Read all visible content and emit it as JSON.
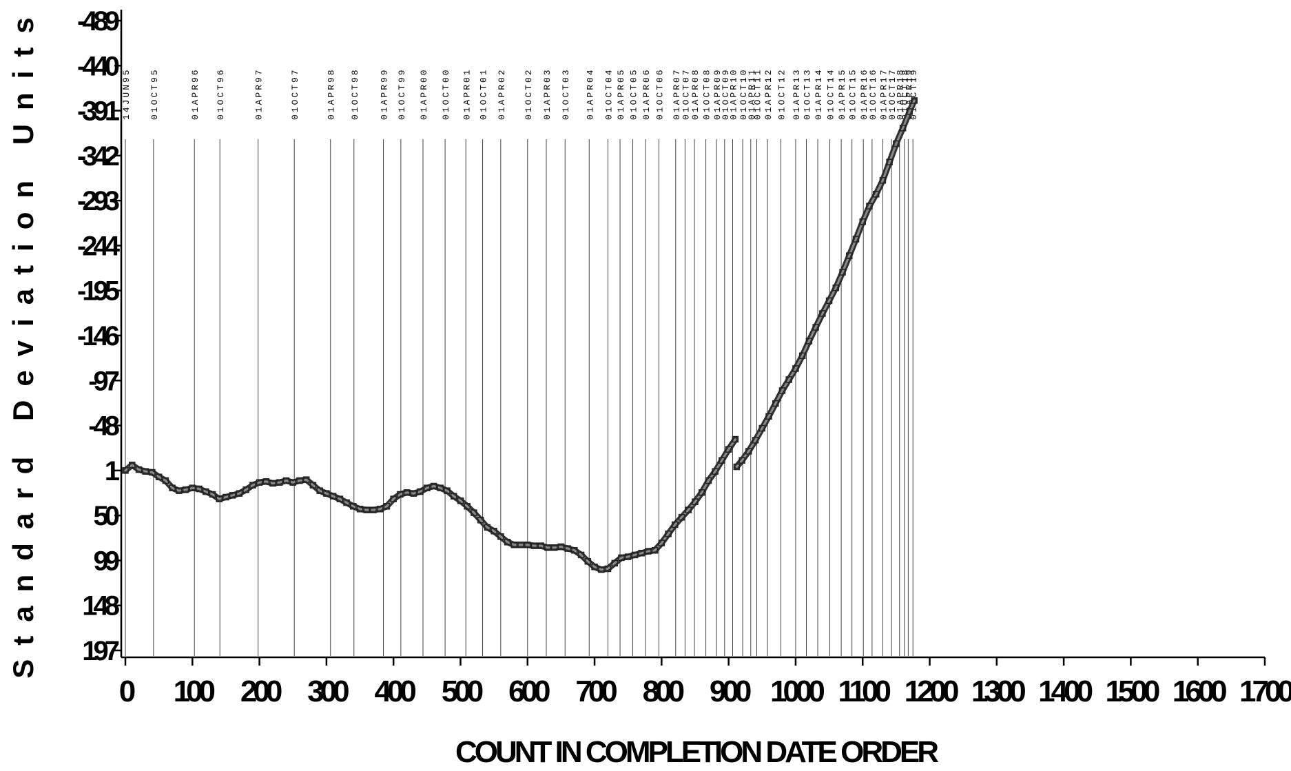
{
  "chart_data": {
    "type": "line",
    "title": "",
    "xlabel": "COUNT IN COMPLETION DATE ORDER",
    "ylabel": "Standard Deviation Units",
    "xlim": [
      0,
      1700
    ],
    "ylim": [
      197,
      -489
    ],
    "y_reversed": true,
    "x_ticks": [
      "0",
      "100",
      "200",
      "300",
      "400",
      "500",
      "600",
      "700",
      "800",
      "900",
      "1000",
      "1100",
      "1200",
      "1300",
      "1400",
      "1500",
      "1600",
      "1700"
    ],
    "y_ticks": [
      "-489",
      "-440",
      "-391",
      "-342",
      "-293",
      "-244",
      "-195",
      "-146",
      "-97",
      "-48",
      "1",
      "50",
      "99",
      "148",
      "197"
    ],
    "grid": false,
    "reference_lines": [
      {
        "x": 0,
        "label": "14JUN95"
      },
      {
        "x": 42,
        "label": "01OCT95"
      },
      {
        "x": 103,
        "label": "01APR96"
      },
      {
        "x": 141,
        "label": "01OCT96"
      },
      {
        "x": 198,
        "label": "01APR97"
      },
      {
        "x": 252,
        "label": "01OCT97"
      },
      {
        "x": 306,
        "label": "01APR98"
      },
      {
        "x": 341,
        "label": "01OCT98"
      },
      {
        "x": 385,
        "label": "01APR99"
      },
      {
        "x": 411,
        "label": "01OCT99"
      },
      {
        "x": 444,
        "label": "01APR00"
      },
      {
        "x": 477,
        "label": "01OCT00"
      },
      {
        "x": 508,
        "label": "01APR01"
      },
      {
        "x": 533,
        "label": "01OCT01"
      },
      {
        "x": 560,
        "label": "01APR02"
      },
      {
        "x": 600,
        "label": "01OCT02"
      },
      {
        "x": 628,
        "label": "01APR03"
      },
      {
        "x": 656,
        "label": "01OCT03"
      },
      {
        "x": 692,
        "label": "01APR04"
      },
      {
        "x": 720,
        "label": "01OCT04"
      },
      {
        "x": 738,
        "label": "01APR05"
      },
      {
        "x": 757,
        "label": "01OCT05"
      },
      {
        "x": 776,
        "label": "01APR06"
      },
      {
        "x": 796,
        "label": "01OCT06"
      },
      {
        "x": 821,
        "label": "01APR07"
      },
      {
        "x": 835,
        "label": "01OCT07"
      },
      {
        "x": 849,
        "label": "01APR08"
      },
      {
        "x": 866,
        "label": "01OCT08"
      },
      {
        "x": 882,
        "label": "01APR09"
      },
      {
        "x": 894,
        "label": "01OCT09"
      },
      {
        "x": 906,
        "label": "01APR10"
      },
      {
        "x": 921,
        "label": "01OCT10"
      },
      {
        "x": 933,
        "label": "01APR11"
      },
      {
        "x": 942,
        "label": "01OCT11"
      },
      {
        "x": 958,
        "label": "01APR12"
      },
      {
        "x": 978,
        "label": "01OCT12"
      },
      {
        "x": 1000,
        "label": "01APR13"
      },
      {
        "x": 1016,
        "label": "01OCT13"
      },
      {
        "x": 1033,
        "label": "01APR14"
      },
      {
        "x": 1051,
        "label": "01OCT14"
      },
      {
        "x": 1068,
        "label": "01APR15"
      },
      {
        "x": 1084,
        "label": "01OCT15"
      },
      {
        "x": 1101,
        "label": "01APR16"
      },
      {
        "x": 1114,
        "label": "01OCT16"
      },
      {
        "x": 1130,
        "label": "01APR17"
      },
      {
        "x": 1143,
        "label": "01OCT17"
      },
      {
        "x": 1155,
        "label": "01APR18"
      },
      {
        "x": 1162,
        "label": "01OCT18"
      },
      {
        "x": 1168,
        "label": "01APR19"
      },
      {
        "x": 1175,
        "label": "01OCT19"
      }
    ],
    "series": [
      {
        "name": "",
        "segments": [
          [
            [
              0,
              1
            ],
            [
              10,
              -5
            ],
            [
              20,
              0
            ],
            [
              30,
              2
            ],
            [
              40,
              3
            ],
            [
              50,
              8
            ],
            [
              60,
              12
            ],
            [
              70,
              20
            ],
            [
              80,
              23
            ],
            [
              90,
              22
            ],
            [
              100,
              20
            ],
            [
              110,
              21
            ],
            [
              120,
              24
            ],
            [
              130,
              27
            ],
            [
              140,
              32
            ],
            [
              150,
              30
            ],
            [
              160,
              28
            ],
            [
              170,
              26
            ],
            [
              180,
              22
            ],
            [
              190,
              17
            ],
            [
              200,
              14
            ],
            [
              210,
              13
            ],
            [
              220,
              15
            ],
            [
              230,
              14
            ],
            [
              240,
              12
            ],
            [
              250,
              14
            ],
            [
              260,
              12
            ],
            [
              270,
              11
            ],
            [
              280,
              17
            ],
            [
              290,
              23
            ],
            [
              300,
              26
            ],
            [
              310,
              29
            ],
            [
              320,
              32
            ],
            [
              330,
              36
            ],
            [
              340,
              40
            ],
            [
              350,
              43
            ],
            [
              360,
              44
            ],
            [
              370,
              44
            ],
            [
              380,
              43
            ],
            [
              390,
              40
            ],
            [
              400,
              32
            ],
            [
              410,
              27
            ],
            [
              420,
              25
            ],
            [
              430,
              26
            ],
            [
              440,
              24
            ],
            [
              450,
              20
            ],
            [
              460,
              18
            ],
            [
              470,
              20
            ],
            [
              480,
              23
            ],
            [
              490,
              29
            ],
            [
              500,
              34
            ],
            [
              510,
              40
            ],
            [
              520,
              47
            ],
            [
              530,
              55
            ],
            [
              540,
              63
            ],
            [
              550,
              67
            ],
            [
              560,
              73
            ],
            [
              570,
              79
            ],
            [
              580,
              82
            ],
            [
              590,
              82
            ],
            [
              600,
              82
            ],
            [
              610,
              83
            ],
            [
              620,
              83
            ],
            [
              630,
              85
            ],
            [
              640,
              85
            ],
            [
              650,
              84
            ],
            [
              660,
              86
            ],
            [
              670,
              88
            ],
            [
              680,
              93
            ],
            [
              690,
              100
            ],
            [
              700,
              106
            ],
            [
              710,
              109
            ],
            [
              720,
              108
            ],
            [
              730,
              102
            ],
            [
              740,
              96
            ],
            [
              750,
              95
            ],
            [
              760,
              93
            ],
            [
              770,
              91
            ],
            [
              780,
              89
            ],
            [
              790,
              88
            ],
            [
              800,
              80
            ],
            [
              810,
              70
            ],
            [
              820,
              60
            ],
            [
              830,
              52
            ],
            [
              840,
              44
            ],
            [
              850,
              35
            ],
            [
              860,
              25
            ],
            [
              870,
              12
            ],
            [
              880,
              2
            ],
            [
              890,
              -10
            ],
            [
              900,
              -22
            ],
            [
              910,
              -33
            ]
          ],
          [
            [
              912,
              -3
            ],
            [
              920,
              -10
            ],
            [
              930,
              -20
            ],
            [
              940,
              -32
            ],
            [
              950,
              -45
            ],
            [
              960,
              -58
            ],
            [
              970,
              -72
            ],
            [
              980,
              -86
            ],
            [
              990,
              -98
            ],
            [
              1000,
              -110
            ],
            [
              1010,
              -124
            ],
            [
              1020,
              -140
            ],
            [
              1030,
              -155
            ],
            [
              1040,
              -170
            ],
            [
              1050,
              -184
            ],
            [
              1060,
              -198
            ],
            [
              1070,
              -215
            ],
            [
              1080,
              -233
            ],
            [
              1090,
              -251
            ],
            [
              1100,
              -270
            ],
            [
              1110,
              -287
            ],
            [
              1120,
              -300
            ],
            [
              1130,
              -315
            ],
            [
              1140,
              -335
            ],
            [
              1150,
              -355
            ],
            [
              1160,
              -372
            ],
            [
              1170,
              -390
            ],
            [
              1177,
              -402
            ]
          ]
        ]
      }
    ]
  }
}
